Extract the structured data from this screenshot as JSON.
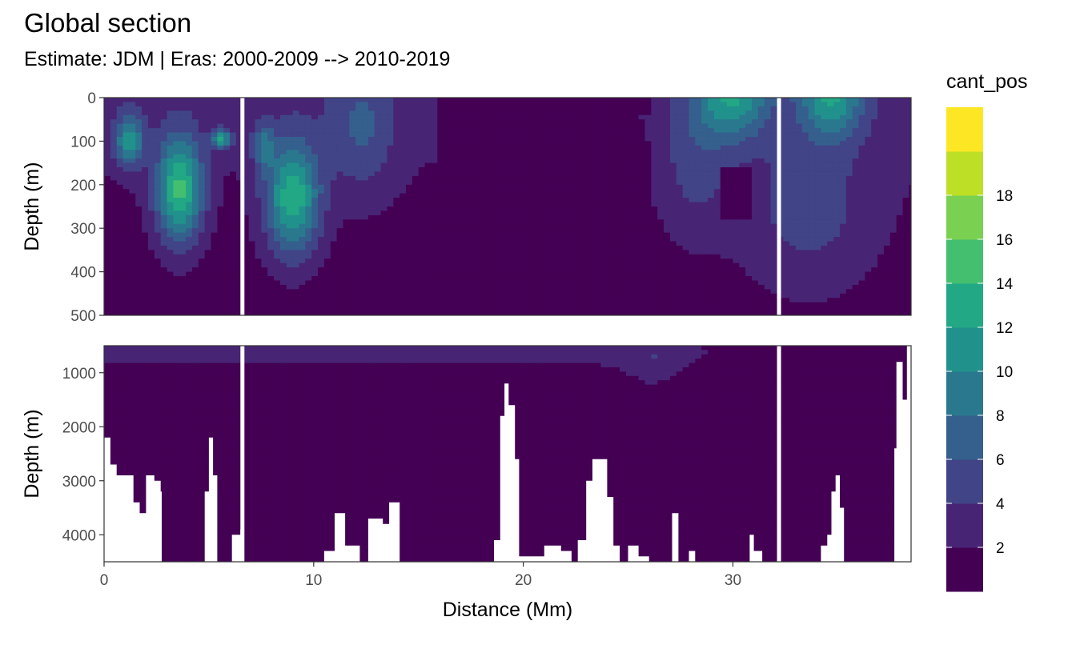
{
  "colors": {
    "background": "#ffffff",
    "panel_border": "#333333",
    "grid": "#ebebeb",
    "axis_text": "#4d4d4d",
    "palette": [
      "#440154",
      "#482475",
      "#414487",
      "#355f8d",
      "#2a788e",
      "#21918c",
      "#22a884",
      "#44bf70",
      "#7ad151",
      "#bddf26",
      "#fde725"
    ]
  },
  "chart_data": {
    "type": "heatmap",
    "title": "Global section",
    "subtitle": "Estimate: JDM  | Eras: 2000-2009 --> 2010-2019",
    "xlabel": "Distance (Mm)",
    "ylabel": "Depth (m)",
    "xlim": [
      0,
      38.5
    ],
    "x_ticks": [
      0,
      10,
      20,
      30
    ],
    "x_tick_labels": [
      "0",
      "10",
      "20",
      "30"
    ],
    "legend": {
      "title": "cant_pos",
      "position": "right",
      "bins": [
        0,
        2,
        4,
        6,
        8,
        10,
        12,
        14,
        16,
        18,
        20
      ],
      "labels": [
        "2",
        "4",
        "6",
        "8",
        "10",
        "12",
        "14",
        "16",
        "18"
      ]
    },
    "panels": [
      {
        "name": "upper",
        "ylim": [
          0,
          500
        ],
        "y_ticks": [
          0,
          100,
          200,
          300,
          400,
          500
        ],
        "y_tick_labels": [
          "0",
          "100",
          "200",
          "300",
          "400",
          "500"
        ]
      },
      {
        "name": "lower",
        "ylim": [
          500,
          4500
        ],
        "y_ticks": [
          1000,
          2000,
          3000,
          4000
        ],
        "y_tick_labels": [
          "1000",
          "2000",
          "3000",
          "4000"
        ]
      }
    ],
    "gaps_x": [
      6.6,
      32.2
    ],
    "bottom_topography_mm_m": [
      [
        0.0,
        2200
      ],
      [
        0.3,
        2700
      ],
      [
        0.6,
        2900
      ],
      [
        1.1,
        2900
      ],
      [
        1.4,
        3400
      ],
      [
        1.7,
        3600
      ],
      [
        2.0,
        2900
      ],
      [
        2.4,
        3000
      ],
      [
        2.7,
        3200
      ],
      [
        2.75,
        4500
      ],
      [
        4.5,
        4500
      ],
      [
        4.8,
        3200
      ],
      [
        5.0,
        2200
      ],
      [
        5.2,
        2900
      ],
      [
        5.4,
        4500
      ],
      [
        5.9,
        4500
      ],
      [
        6.1,
        4000
      ],
      [
        6.5,
        3900
      ],
      [
        6.6,
        4500
      ],
      [
        10.0,
        4500
      ],
      [
        10.5,
        4300
      ],
      [
        11.0,
        3600
      ],
      [
        11.5,
        4200
      ],
      [
        12.2,
        4500
      ],
      [
        12.6,
        3700
      ],
      [
        13.3,
        3800
      ],
      [
        13.6,
        3400
      ],
      [
        14.1,
        4500
      ],
      [
        18.0,
        4500
      ],
      [
        18.6,
        4100
      ],
      [
        18.9,
        1800
      ],
      [
        19.1,
        1200
      ],
      [
        19.3,
        1600
      ],
      [
        19.6,
        2600
      ],
      [
        19.8,
        4400
      ],
      [
        20.4,
        4400
      ],
      [
        21.0,
        4200
      ],
      [
        21.8,
        4300
      ],
      [
        22.3,
        4500
      ],
      [
        22.6,
        4100
      ],
      [
        23.0,
        3000
      ],
      [
        23.3,
        2600
      ],
      [
        23.7,
        2600
      ],
      [
        24.0,
        3300
      ],
      [
        24.3,
        4200
      ],
      [
        24.6,
        4500
      ],
      [
        25.0,
        4200
      ],
      [
        25.5,
        4400
      ],
      [
        26.0,
        4500
      ],
      [
        27.1,
        3600
      ],
      [
        27.4,
        4500
      ],
      [
        27.9,
        4300
      ],
      [
        28.2,
        4500
      ],
      [
        30.6,
        4500
      ],
      [
        30.8,
        4000
      ],
      [
        31.0,
        4300
      ],
      [
        31.4,
        4500
      ],
      [
        33.6,
        4500
      ],
      [
        34.2,
        4200
      ],
      [
        34.5,
        4000
      ],
      [
        34.7,
        3200
      ],
      [
        34.9,
        2900
      ],
      [
        35.1,
        3500
      ],
      [
        35.3,
        4500
      ],
      [
        37.5,
        4500
      ],
      [
        37.7,
        2400
      ],
      [
        37.8,
        800
      ],
      [
        38.0,
        800
      ],
      [
        38.1,
        1500
      ],
      [
        38.3,
        400
      ]
    ]
  }
}
